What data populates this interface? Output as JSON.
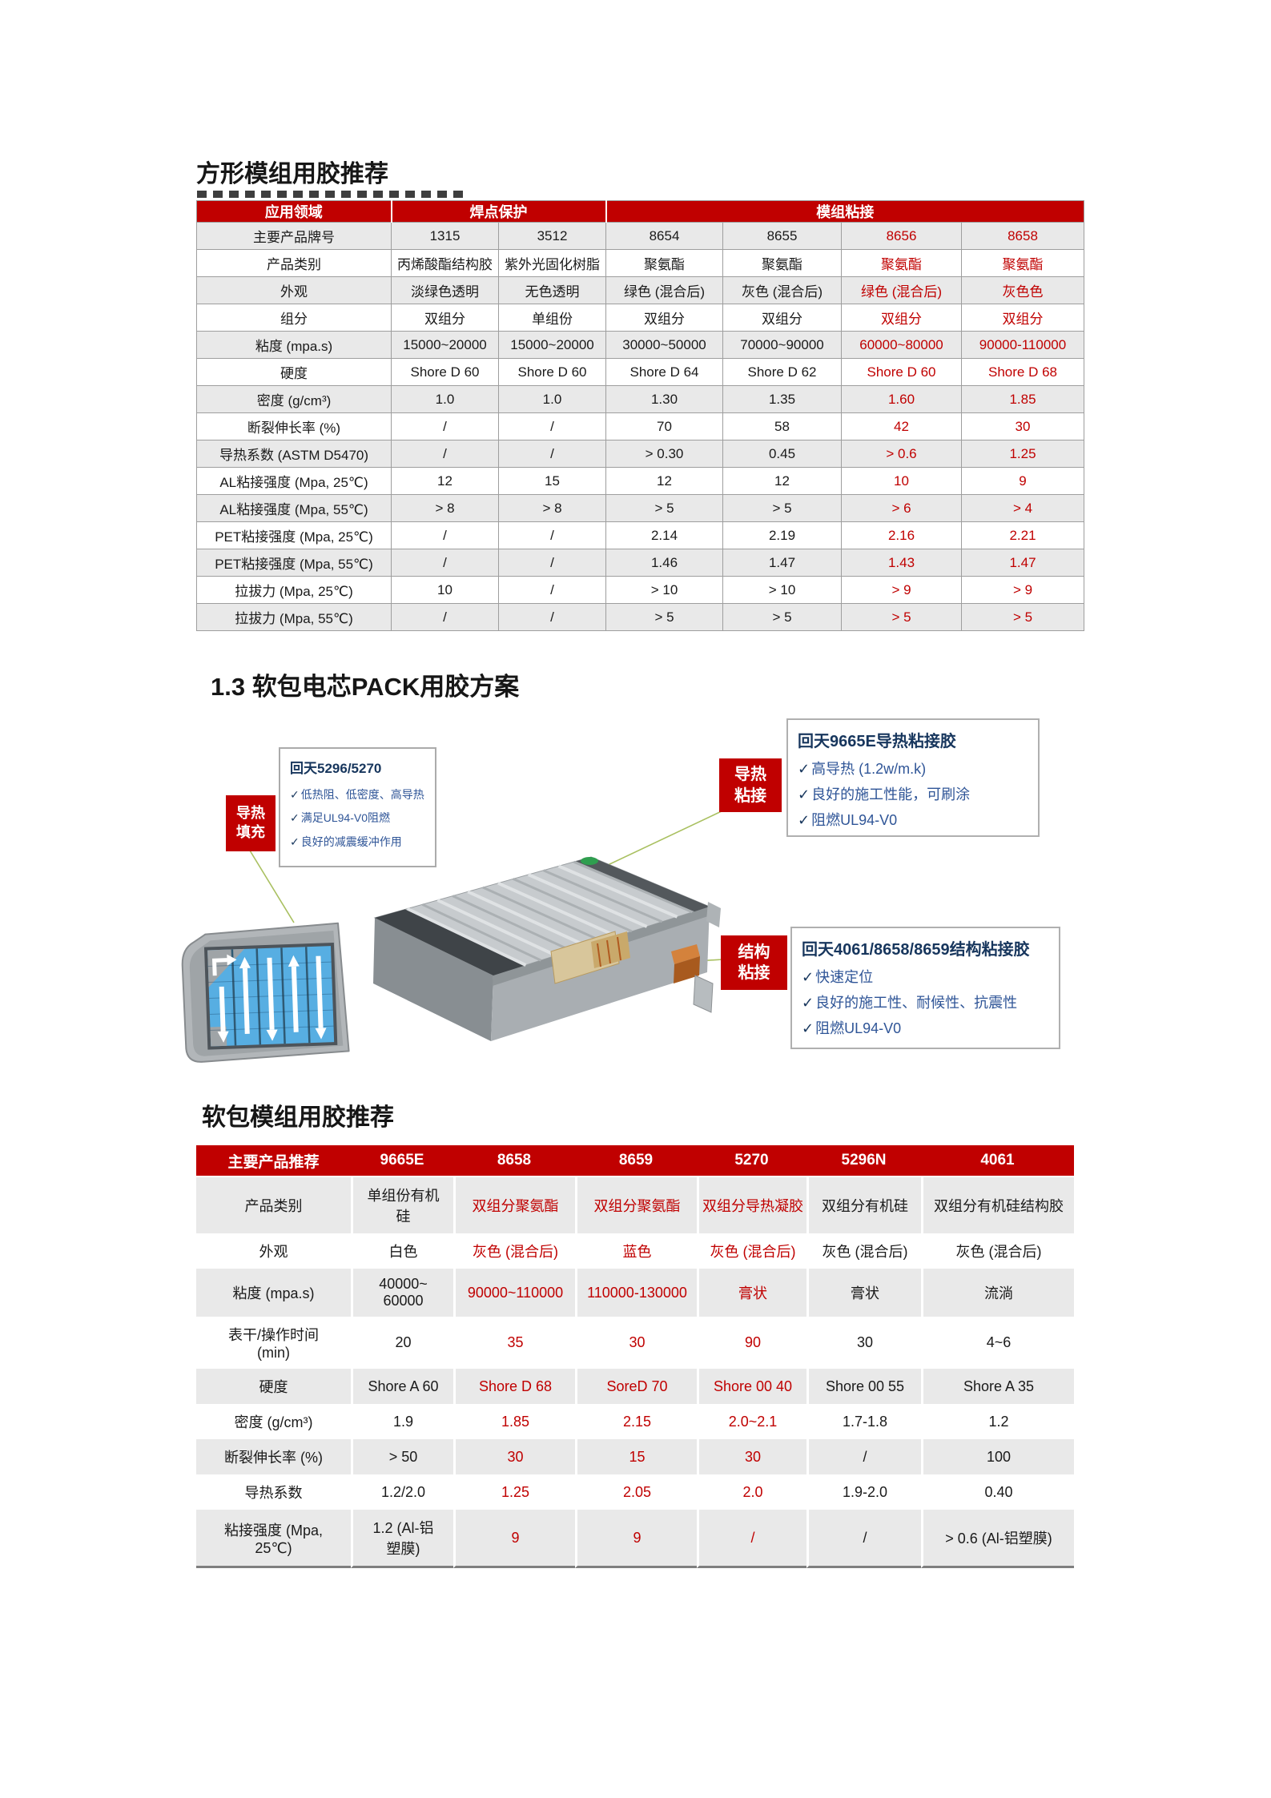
{
  "colors": {
    "accent_red": "#C00000",
    "stripe_gray": "#E9E9E9",
    "callout_title_blue": "#17365D",
    "callout_text_blue": "#2F5597",
    "connector_green": "#A9C060",
    "tray_cell_blue": "#57AEE2"
  },
  "icons": {
    "check": "✓"
  },
  "section1": {
    "title": "方形模组用胶推荐"
  },
  "table1": {
    "header": {
      "application": "应用领域",
      "solder_protection": "焊点保护",
      "module_bonding": "模组粘接"
    },
    "red_value_columns": [
      4,
      5
    ],
    "rows": [
      {
        "label": "主要产品牌号",
        "values": [
          "1315",
          "3512",
          "8654",
          "8655",
          "8656",
          "8658"
        ]
      },
      {
        "label": "产品类别",
        "values": [
          "丙烯酸酯结构胶",
          "紫外光固化树脂",
          "聚氨酯",
          "聚氨酯",
          "聚氨酯",
          "聚氨酯"
        ]
      },
      {
        "label": "外观",
        "values": [
          "淡绿色透明",
          "无色透明",
          "绿色 (混合后)",
          "灰色 (混合后)",
          "绿色 (混合后)",
          "灰色色"
        ]
      },
      {
        "label": "组分",
        "values": [
          "双组分",
          "单组份",
          "双组分",
          "双组分",
          "双组分",
          "双组分"
        ]
      },
      {
        "label": "粘度 (mpa.s)",
        "values": [
          "15000~20000",
          "15000~20000",
          "30000~50000",
          "70000~90000",
          "60000~80000",
          "90000-110000"
        ]
      },
      {
        "label": "硬度",
        "values": [
          "Shore D 60",
          "Shore D 60",
          "Shore D 64",
          "Shore D 62",
          "Shore D 60",
          "Shore D 68"
        ]
      },
      {
        "label": "密度 (g/cm³)",
        "values": [
          "1.0",
          "1.0",
          "1.30",
          "1.35",
          "1.60",
          "1.85"
        ]
      },
      {
        "label": "断裂伸长率 (%)",
        "values": [
          "/",
          "/",
          "70",
          "58",
          "42",
          "30"
        ]
      },
      {
        "label": "导热系数 (ASTM D5470)",
        "values": [
          "/",
          "/",
          "> 0.30",
          "0.45",
          "> 0.6",
          "1.25"
        ]
      },
      {
        "label": "AL粘接强度 (Mpa, 25℃)",
        "values": [
          "12",
          "15",
          "12",
          "12",
          "10",
          "9"
        ]
      },
      {
        "label": "AL粘接强度 (Mpa, 55℃)",
        "values": [
          "> 8",
          "> 8",
          "> 5",
          "> 5",
          "> 6",
          "> 4"
        ]
      },
      {
        "label": "PET粘接强度 (Mpa, 25℃)",
        "values": [
          "/",
          "/",
          "2.14",
          "2.19",
          "2.16",
          "2.21"
        ]
      },
      {
        "label": "PET粘接强度 (Mpa, 55℃)",
        "values": [
          "/",
          "/",
          "1.46",
          "1.47",
          "1.43",
          "1.47"
        ]
      },
      {
        "label": "拉拔力 (Mpa, 25℃)",
        "values": [
          "10",
          "/",
          "> 10",
          "> 10",
          "> 9",
          "> 9"
        ]
      },
      {
        "label": "拉拔力 (Mpa, 55℃)",
        "values": [
          "/",
          "/",
          "> 5",
          "> 5",
          "> 5",
          "> 5"
        ]
      }
    ]
  },
  "section2": {
    "heading": "1.3 软包电芯PACK用胶方案"
  },
  "callouts": [
    {
      "title": "回天5296/5270",
      "bullets": [
        "低热阻、低密度、高导热",
        "满足UL94-V0阻燃",
        "良好的减震缓冲作用"
      ]
    },
    {
      "title": "回天9665E导热粘接胶",
      "bullets": [
        "高导热 (1.2w/m.k)",
        "良好的施工性能，可刷涂",
        "阻燃UL94-V0"
      ]
    },
    {
      "title": "回天4061/8658/8659结构粘接胶",
      "bullets": [
        "快速定位",
        "良好的施工性、耐候性、抗震性",
        "阻燃UL94-V0"
      ]
    }
  ],
  "diagram_labels": [
    {
      "line1": "导热",
      "line2": "填充"
    },
    {
      "line1": "导热",
      "line2": "粘接"
    },
    {
      "line1": "结构",
      "line2": "粘接"
    }
  ],
  "section3": {
    "title": "软包模组用胶推荐"
  },
  "table2": {
    "header_label": "主要产品推荐",
    "products": [
      "9665E",
      "8658",
      "8659",
      "5270",
      "5296N",
      "4061"
    ],
    "red_value_columns": [
      1,
      2,
      3
    ],
    "rows": [
      {
        "label": "产品类别",
        "values": [
          "单组份有机\n硅",
          "双组分聚氨酯",
          "双组分聚氨酯",
          "双组分导热凝胶",
          "双组分有机硅",
          "双组分有机硅结构胶"
        ]
      },
      {
        "label": "外观",
        "values": [
          "白色",
          "灰色 (混合后)",
          "蓝色",
          "灰色 (混合后)",
          "灰色 (混合后)",
          "灰色 (混合后)"
        ]
      },
      {
        "label": "粘度 (mpa.s)",
        "values": [
          "40000~\n60000",
          "90000~110000",
          "110000-130000",
          "膏状",
          "膏状",
          "流淌"
        ]
      },
      {
        "label": "表干/操作时间\n(min)",
        "values": [
          "20",
          "35",
          "30",
          "90",
          "30",
          "4~6"
        ]
      },
      {
        "label": "硬度",
        "values": [
          "Shore A 60",
          "Shore D 68",
          "SoreD 70",
          "Shore 00 40",
          "Shore 00 55",
          "Shore A 35"
        ]
      },
      {
        "label": "密度 (g/cm³)",
        "values": [
          "1.9",
          "1.85",
          "2.15",
          "2.0~2.1",
          "1.7-1.8",
          "1.2"
        ]
      },
      {
        "label": "断裂伸长率 (%)",
        "values": [
          "> 50",
          "30",
          "15",
          "30",
          "/",
          "100"
        ]
      },
      {
        "label": "导热系数",
        "values": [
          "1.2/2.0",
          "1.25",
          "2.05",
          "2.0",
          "1.9-2.0",
          "0.40"
        ]
      },
      {
        "label": "粘接强度 (Mpa,\n25℃)",
        "values": [
          "1.2 (Al-铝\n塑膜)",
          "9",
          "9",
          "/",
          "/",
          "> 0.6 (Al-铝塑膜)"
        ]
      }
    ]
  }
}
